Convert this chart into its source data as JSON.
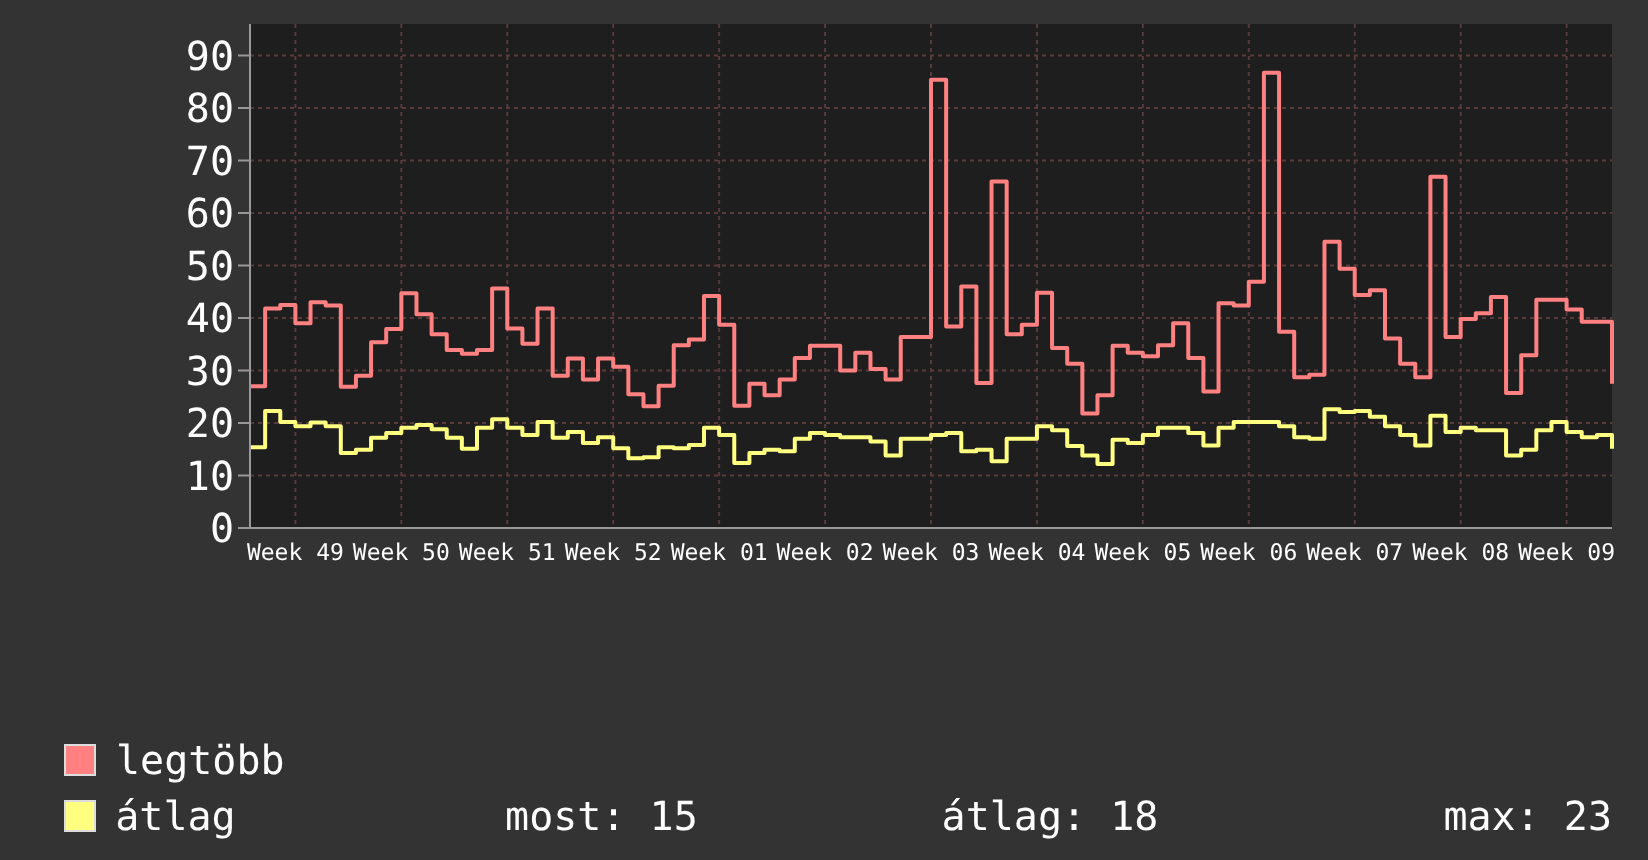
{
  "chart_data": {
    "type": "step",
    "legend": "bottom",
    "grid": true,
    "marker": "none",
    "categories": [
      null,
      null,
      null,
      "Week 49",
      null,
      null,
      null,
      null,
      null,
      null,
      "Week 50",
      null,
      null,
      null,
      null,
      null,
      null,
      "Week 51",
      null,
      null,
      null,
      null,
      null,
      null,
      "Week 52",
      null,
      null,
      null,
      null,
      null,
      null,
      "Week 01",
      null,
      null,
      null,
      null,
      null,
      null,
      "Week 02",
      null,
      null,
      null,
      null,
      null,
      null,
      "Week 03",
      null,
      null,
      null,
      null,
      null,
      null,
      "Week 04",
      null,
      null,
      null,
      null,
      null,
      null,
      "Week 05",
      null,
      null,
      null,
      null,
      null,
      null,
      "Week 06",
      null,
      null,
      null,
      null,
      null,
      null,
      "Week 07",
      null,
      null,
      null,
      null,
      null,
      null,
      "Week 08",
      null,
      null,
      null,
      null,
      null,
      null,
      "Week 09",
      null,
      null,
      null
    ],
    "ylim": [
      0,
      96
    ],
    "yticks": [
      0,
      10,
      20,
      30,
      40,
      50,
      60,
      70,
      80,
      90
    ],
    "series": [
      {
        "name": "legtöbb",
        "color": "#ff8080",
        "values": [
          27.0,
          41.8,
          42.5,
          39,
          43,
          42.4,
          26.9,
          29,
          35.4,
          37.9,
          44.7,
          40.7,
          36.9,
          33.9,
          33.2,
          33.9,
          45.6,
          38,
          35.1,
          41.8,
          29,
          32.3,
          28.3,
          32.3,
          30.7,
          25.5,
          23.2,
          27.1,
          34.8,
          35.9,
          44.2,
          38.7,
          23.3,
          27.5,
          25.3,
          28.3,
          32.4,
          34.7,
          34.7,
          30,
          33.4,
          30.3,
          28.3,
          36.4,
          36.4,
          85.4,
          38.4,
          46,
          27.6,
          66,
          36.9,
          38.7,
          44.8,
          34.3,
          31.3,
          21.8,
          25.3,
          34.7,
          33.4,
          32.7,
          34.8,
          39,
          32.4,
          26,
          42.8,
          42.4,
          46.9,
          86.7,
          37.4,
          28.7,
          29.2,
          54.5,
          49.4,
          44.4,
          45.3,
          36.1,
          31.3,
          28.7,
          66.9,
          36.4,
          39.8,
          40.9,
          44,
          25.7,
          32.9,
          43.5,
          43.5,
          41.6,
          39.3,
          39.3,
          27.5
        ]
      },
      {
        "name": "átlag",
        "color": "#ffff80",
        "values": [
          15.4,
          22.3,
          20.2,
          19.4,
          20.1,
          19.4,
          14.3,
          14.9,
          17.2,
          18.1,
          19.1,
          19.6,
          18.8,
          17.2,
          15.1,
          19.1,
          20.7,
          19.1,
          17.7,
          20.2,
          17.2,
          18.3,
          16.2,
          17.3,
          15.2,
          13.3,
          13.5,
          15.4,
          15.2,
          15.8,
          19.1,
          17.7,
          12.4,
          14.3,
          14.9,
          14.6,
          17,
          18.1,
          17.7,
          17.3,
          17.3,
          16.5,
          13.8,
          17,
          17,
          17.7,
          18.1,
          14.6,
          14.9,
          12.7,
          17,
          17,
          19.4,
          18.6,
          15.6,
          13.8,
          12.2,
          16.8,
          16.2,
          17.7,
          19.1,
          19.1,
          18.1,
          15.7,
          19.1,
          20.2,
          20.2,
          20.2,
          19.4,
          17.3,
          17,
          22.6,
          22.1,
          22.3,
          21.2,
          19.4,
          17.7,
          15.7,
          21.4,
          18.3,
          19.1,
          18.6,
          18.6,
          13.8,
          14.9,
          18.6,
          20.2,
          18.3,
          17.3,
          17.7,
          15.1
        ]
      }
    ],
    "annotations": [
      "most: 15",
      "átlag: 18",
      "max: 23"
    ]
  }
}
